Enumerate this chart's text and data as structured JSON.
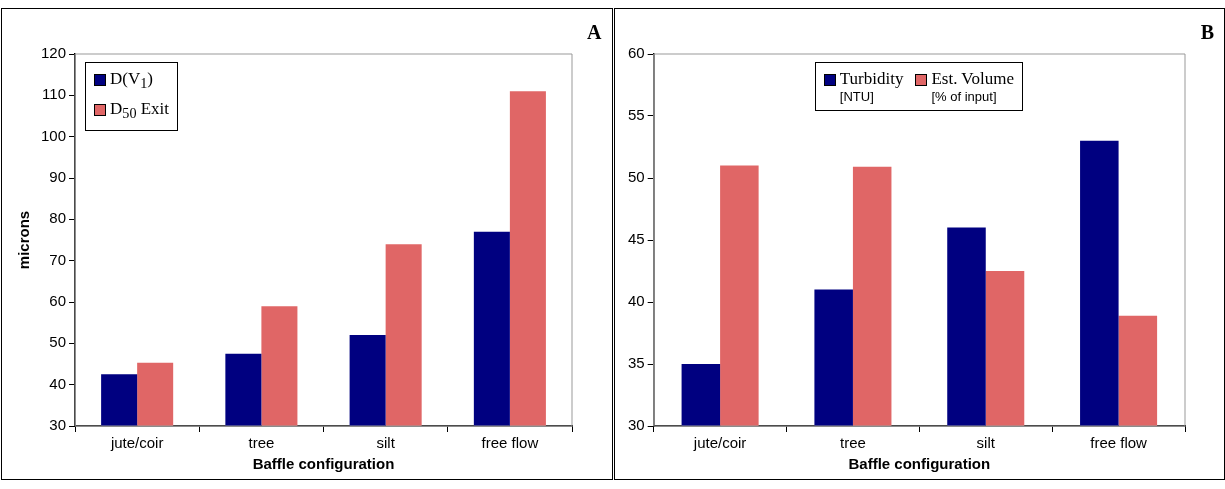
{
  "chart_data": [
    {
      "type": "bar",
      "annotations": [
        "A"
      ],
      "xlabel": "Baffle configuration",
      "ylabel": "microns",
      "categories": [
        "jute/coir",
        "tree",
        "silt",
        "free flow"
      ],
      "series": [
        {
          "name": "D(V$_{1}$)",
          "color": "#000080",
          "values": [
            42.5,
            47.5,
            52,
            77
          ]
        },
        {
          "name": "D$_{50}$ Exit",
          "color": "#e06666",
          "values": [
            45.3,
            59,
            74,
            111
          ]
        }
      ],
      "ylim": [
        30,
        120
      ],
      "yticks": [
        30,
        40,
        50,
        60,
        70,
        80,
        90,
        100,
        110,
        120
      ],
      "grid": false,
      "legend": "top left"
    },
    {
      "type": "bar",
      "annotations": [
        "B"
      ],
      "xlabel": "Baffle configuration",
      "categories": [
        "jute/coir",
        "tree",
        "silt",
        "free flow"
      ],
      "series": [
        {
          "name": "Turbidity\n[NTU]",
          "color": "#000080",
          "values": [
            35,
            41,
            46,
            53
          ]
        },
        {
          "name": "Est. Volume\n[% of input]",
          "color": "#e06666",
          "values": [
            51,
            50.9,
            42.5,
            38.9
          ]
        }
      ],
      "ylim": [
        30,
        60
      ],
      "yticks": [
        30,
        35,
        40,
        45,
        50,
        55,
        60
      ],
      "grid": false,
      "legend": "top"
    }
  ]
}
